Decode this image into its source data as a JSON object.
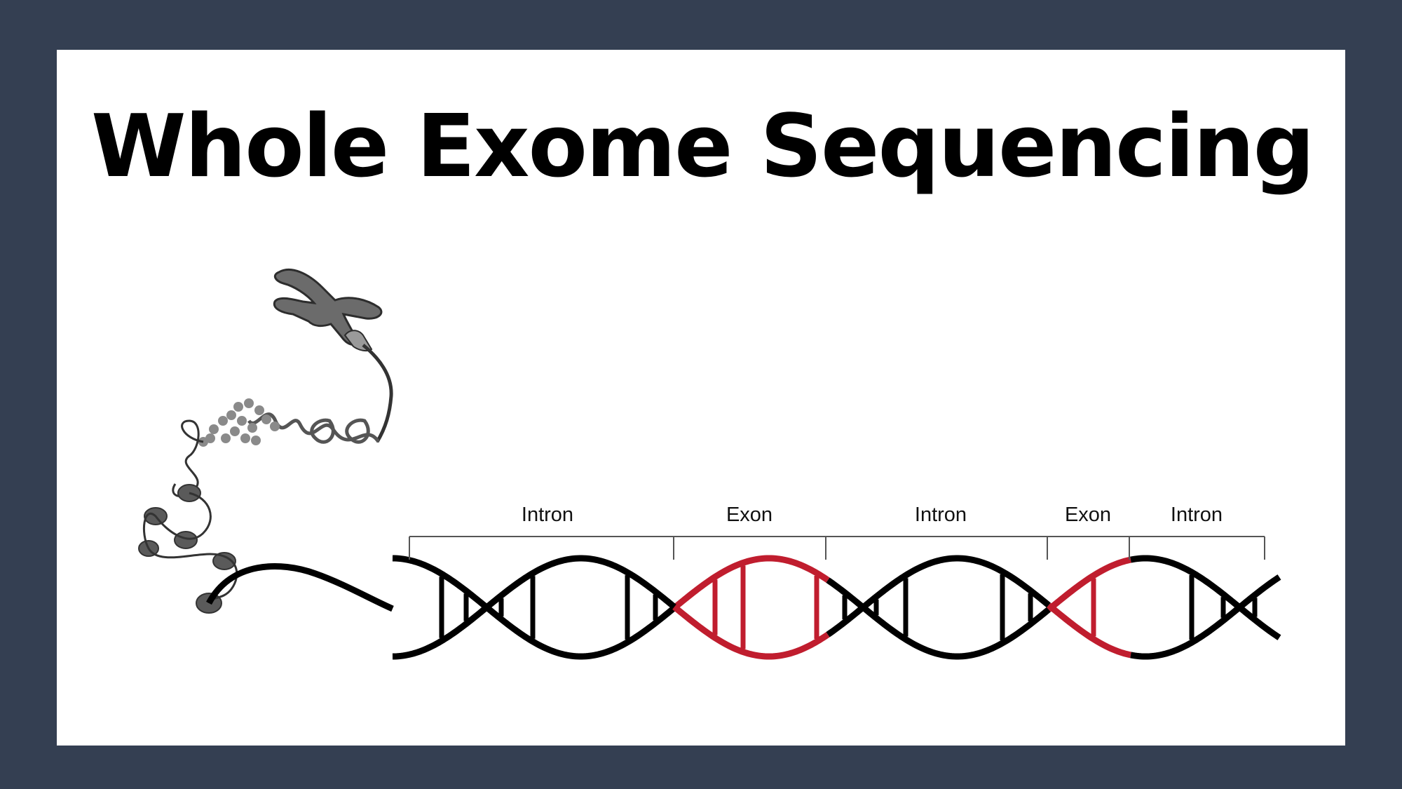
{
  "slide": {
    "title": "Whole Exome Sequencing"
  },
  "colors": {
    "frame": "#343f52",
    "background": "#ffffff",
    "intron": "#000000",
    "exon": "#c01d2e",
    "chromatin": "#6b6b6b"
  },
  "illustration": {
    "icons": [
      "chromosome-icon",
      "chromatin-fiber-icon",
      "nucleosome-icon"
    ]
  },
  "segments": [
    {
      "label": "Intron",
      "type": "intron"
    },
    {
      "label": "Exon",
      "type": "exon"
    },
    {
      "label": "Intron",
      "type": "intron"
    },
    {
      "label": "Exon",
      "type": "exon"
    },
    {
      "label": "Intron",
      "type": "intron"
    }
  ]
}
